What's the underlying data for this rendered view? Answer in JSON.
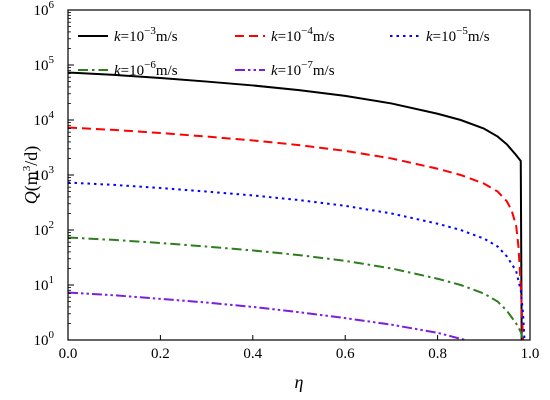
{
  "chart_data": {
    "type": "line",
    "xlabel": "η",
    "ylabel": {
      "base": "Q(m",
      "sup": "3",
      "tail": "/d)"
    },
    "xlim": [
      0.0,
      1.0
    ],
    "ylim": [
      1,
      1000000
    ],
    "yscale": "log",
    "grid": false,
    "legend_position": "top",
    "x_ticks": [
      "0.0",
      "0.2",
      "0.4",
      "0.6",
      "0.8",
      "1.0"
    ],
    "y_ticks": [
      {
        "base": "10",
        "exp": "0"
      },
      {
        "base": "10",
        "exp": "1"
      },
      {
        "base": "10",
        "exp": "2"
      },
      {
        "base": "10",
        "exp": "3"
      },
      {
        "base": "10",
        "exp": "4"
      },
      {
        "base": "10",
        "exp": "5"
      },
      {
        "base": "10",
        "exp": "6"
      }
    ],
    "series": [
      {
        "name": "k=10^-3 m/s",
        "legend": {
          "k": "k",
          "eq": "=10",
          "exp": "−3",
          "unit": "m/s"
        },
        "color": "#000000",
        "dash": "solid",
        "points": [
          [
            0.0,
            73000
          ],
          [
            0.1,
            66000
          ],
          [
            0.2,
            58000
          ],
          [
            0.3,
            50000
          ],
          [
            0.4,
            42500
          ],
          [
            0.5,
            35000
          ],
          [
            0.6,
            27500
          ],
          [
            0.7,
            20000
          ],
          [
            0.8,
            13000
          ],
          [
            0.85,
            10000
          ],
          [
            0.9,
            7000
          ],
          [
            0.93,
            5000
          ],
          [
            0.95,
            3600
          ],
          [
            0.97,
            2300
          ],
          [
            0.98,
            1800
          ],
          [
            0.982,
            1
          ]
        ]
      },
      {
        "name": "k=10^-4 m/s",
        "legend": {
          "k": "k",
          "eq": "=10",
          "exp": "−4",
          "unit": "m/s"
        },
        "color": "#ff0000",
        "dash": "dashed",
        "points": [
          [
            0.0,
            7300
          ],
          [
            0.1,
            6600
          ],
          [
            0.2,
            5800
          ],
          [
            0.3,
            5000
          ],
          [
            0.4,
            4250
          ],
          [
            0.5,
            3500
          ],
          [
            0.6,
            2750
          ],
          [
            0.7,
            2000
          ],
          [
            0.8,
            1300
          ],
          [
            0.85,
            1000
          ],
          [
            0.9,
            700
          ],
          [
            0.93,
            500
          ],
          [
            0.95,
            330
          ],
          [
            0.96,
            230
          ],
          [
            0.97,
            120
          ],
          [
            0.975,
            50
          ],
          [
            0.98,
            10
          ],
          [
            0.985,
            1
          ]
        ]
      },
      {
        "name": "k=10^-5 m/s",
        "legend": {
          "k": "k",
          "eq": "=10",
          "exp": "−5",
          "unit": "m/s"
        },
        "color": "#0000ff",
        "dash": "dotted",
        "points": [
          [
            0.0,
            730
          ],
          [
            0.1,
            660
          ],
          [
            0.2,
            580
          ],
          [
            0.3,
            500
          ],
          [
            0.4,
            425
          ],
          [
            0.5,
            350
          ],
          [
            0.6,
            275
          ],
          [
            0.7,
            200
          ],
          [
            0.8,
            130
          ],
          [
            0.85,
            100
          ],
          [
            0.9,
            70
          ],
          [
            0.93,
            50
          ],
          [
            0.95,
            33
          ],
          [
            0.97,
            18
          ],
          [
            0.98,
            8
          ],
          [
            0.985,
            3
          ],
          [
            0.988,
            1
          ]
        ]
      },
      {
        "name": "k=10^-6 m/s",
        "legend": {
          "k": "k",
          "eq": "=10",
          "exp": "−6",
          "unit": "m/s"
        },
        "color": "#2e7d1e",
        "dash": "dashdot",
        "points": [
          [
            0.0,
            73
          ],
          [
            0.1,
            66
          ],
          [
            0.2,
            58
          ],
          [
            0.3,
            50
          ],
          [
            0.4,
            42.5
          ],
          [
            0.5,
            35
          ],
          [
            0.6,
            27.5
          ],
          [
            0.7,
            20
          ],
          [
            0.8,
            13
          ],
          [
            0.85,
            10
          ],
          [
            0.9,
            7
          ],
          [
            0.93,
            5
          ],
          [
            0.95,
            3.4
          ],
          [
            0.97,
            2
          ],
          [
            0.98,
            1.4
          ],
          [
            0.985,
            1
          ]
        ]
      },
      {
        "name": "k=10^-7 m/s",
        "legend": {
          "k": "k",
          "eq": "=10",
          "exp": "−7",
          "unit": "m/s"
        },
        "color": "#7a1fe0",
        "dash": "dashdotdot",
        "points": [
          [
            0.0,
            7.3
          ],
          [
            0.1,
            6.5
          ],
          [
            0.2,
            5.6
          ],
          [
            0.3,
            4.8
          ],
          [
            0.4,
            4.0
          ],
          [
            0.5,
            3.2
          ],
          [
            0.6,
            2.5
          ],
          [
            0.7,
            1.9
          ],
          [
            0.8,
            1.35
          ],
          [
            0.85,
            1.05
          ],
          [
            0.86,
            1.0
          ]
        ]
      }
    ]
  }
}
